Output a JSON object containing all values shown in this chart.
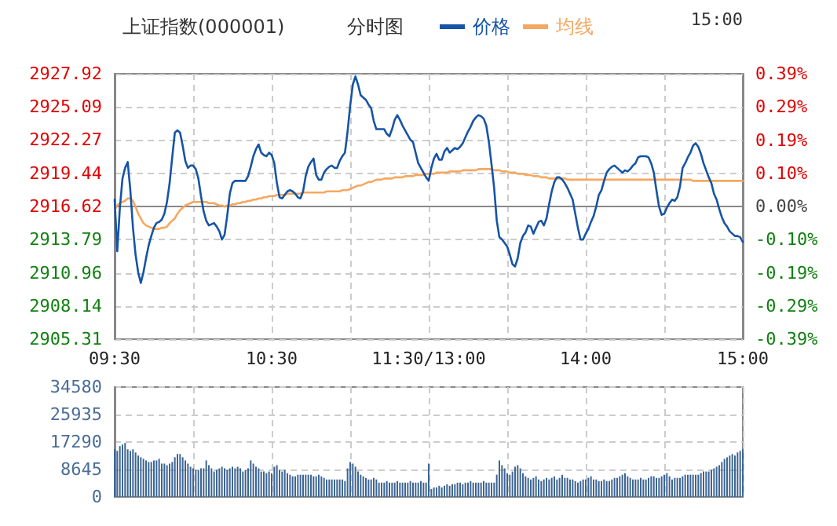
{
  "chart_data": [
    {
      "type": "line",
      "title": "上证指数(000001)",
      "subtitle": "分时图",
      "annotations": [
        "15:00"
      ],
      "legend": "top",
      "grid": true,
      "marker": "none",
      "line_style": "solid",
      "categories": [
        "09:30",
        null,
        null,
        null,
        null,
        null,
        null,
        null,
        null,
        null,
        null,
        null,
        null,
        null,
        null,
        null,
        null,
        null,
        null,
        null,
        null,
        null,
        null,
        null,
        null,
        null,
        null,
        null,
        null,
        null,
        null,
        null,
        null,
        null,
        null,
        null,
        null,
        null,
        null,
        null,
        null,
        null,
        null,
        null,
        null,
        null,
        null,
        null,
        null,
        null,
        null,
        null,
        null,
        null,
        null,
        null,
        null,
        null,
        null,
        null,
        "10:30",
        null,
        null,
        null,
        null,
        null,
        null,
        null,
        null,
        null,
        null,
        null,
        null,
        null,
        null,
        null,
        null,
        null,
        null,
        null,
        null,
        null,
        null,
        null,
        null,
        null,
        null,
        null,
        null,
        null,
        null,
        null,
        null,
        null,
        null,
        null,
        null,
        null,
        null,
        null,
        null,
        null,
        null,
        null,
        null,
        null,
        null,
        null,
        null,
        null,
        null,
        null,
        null,
        null,
        null,
        null,
        null,
        null,
        null,
        null,
        "11:30/13:00",
        null,
        null,
        null,
        null,
        null,
        null,
        null,
        null,
        null,
        null,
        null,
        null,
        null,
        null,
        null,
        null,
        null,
        null,
        null,
        null,
        null,
        null,
        null,
        null,
        null,
        null,
        null,
        null,
        null,
        null,
        null,
        null,
        null,
        null,
        null,
        null,
        null,
        null,
        null,
        null,
        null,
        null,
        null,
        null,
        null,
        null,
        null,
        null,
        null,
        null,
        null,
        null,
        null,
        null,
        null,
        null,
        null,
        null,
        null,
        "14:00",
        null,
        null,
        null,
        null,
        null,
        null,
        null,
        null,
        null,
        null,
        null,
        null,
        null,
        null,
        null,
        null,
        null,
        null,
        null,
        null,
        null,
        null,
        null,
        null,
        null,
        null,
        null,
        null,
        null,
        null,
        null,
        null,
        null,
        null,
        null,
        null,
        null,
        null,
        null,
        null,
        null,
        null,
        null,
        null,
        null,
        null,
        null,
        null,
        null,
        null,
        null,
        null,
        null,
        null,
        null,
        null,
        null,
        null,
        null,
        "15:00"
      ],
      "ylim": [
        2905.31,
        2927.92
      ],
      "yticks": [
        2905.31,
        2908.14,
        2910.96,
        2913.79,
        2916.62,
        2919.44,
        2922.27,
        2925.09,
        2927.92
      ],
      "y2lim": [
        -0.3874,
        0.3874
      ],
      "y2ticks": [
        {
          "value": -0.3874,
          "label": "-0.39%"
        },
        {
          "value": -0.2906,
          "label": "-0.29%"
        },
        {
          "value": -0.1937,
          "label": "-0.19%"
        },
        {
          "value": -0.0969,
          "label": "-0.10%"
        },
        {
          "value": 0,
          "label": "0.00%"
        },
        {
          "value": 0.0969,
          "label": "0.10%"
        },
        {
          "value": 0.1937,
          "label": "0.19%"
        },
        {
          "value": 0.2906,
          "label": "0.29%"
        },
        {
          "value": 0.3874,
          "label": "0.39%"
        }
      ],
      "series": [
        {
          "name": "价格",
          "color": "#1654a6",
          "values": [
            2917.2,
            2912.8,
            2916.5,
            2919.0,
            2919.9,
            2920.4,
            2918.0,
            2914.8,
            2912.5,
            2911.0,
            2910.1,
            2911.0,
            2912.2,
            2913.3,
            2914.1,
            2914.8,
            2915.2,
            2915.3,
            2915.5,
            2916.0,
            2917.0,
            2918.6,
            2920.8,
            2922.9,
            2923.1,
            2922.9,
            2921.8,
            2920.5,
            2919.9,
            2920.1,
            2920.1,
            2919.8,
            2919.0,
            2917.5,
            2916.2,
            2915.4,
            2915.0,
            2915.1,
            2915.2,
            2914.9,
            2914.5,
            2913.8,
            2914.2,
            2915.8,
            2917.7,
            2918.6,
            2918.8,
            2918.8,
            2918.8,
            2918.8,
            2918.8,
            2919.2,
            2920.0,
            2920.9,
            2921.5,
            2921.9,
            2921.2,
            2921.0,
            2920.9,
            2921.2,
            2921.0,
            2920.3,
            2918.6,
            2917.4,
            2917.3,
            2917.6,
            2917.9,
            2918.0,
            2917.9,
            2917.7,
            2917.4,
            2917.3,
            2917.9,
            2919.2,
            2920.0,
            2920.4,
            2920.7,
            2919.3,
            2918.9,
            2918.9,
            2919.5,
            2919.8,
            2920.0,
            2920.1,
            2919.9,
            2919.9,
            2920.5,
            2920.9,
            2921.2,
            2923.0,
            2925.2,
            2927.0,
            2927.7,
            2927.0,
            2926.1,
            2925.9,
            2925.7,
            2925.3,
            2925.0,
            2923.9,
            2923.2,
            2923.2,
            2923.2,
            2923.2,
            2922.8,
            2922.6,
            2923.2,
            2924.0,
            2924.4,
            2924.0,
            2923.5,
            2923.1,
            2922.7,
            2922.3,
            2922.1,
            2921.2,
            2920.3,
            2919.9,
            2919.5,
            2919.1,
            2918.8,
            2919.9,
            2920.7,
            2921.1,
            2920.6,
            2920.6,
            2921.3,
            2921.6,
            2921.2,
            2921.4,
            2921.6,
            2921.5,
            2921.7,
            2922.0,
            2922.5,
            2923.0,
            2923.4,
            2923.9,
            2924.2,
            2924.4,
            2924.3,
            2924.1,
            2923.5,
            2922.1,
            2920.2,
            2918.2,
            2915.4,
            2914.0,
            2913.8,
            2913.5,
            2913.2,
            2912.5,
            2911.7,
            2911.5,
            2912.2,
            2913.5,
            2914.1,
            2914.4,
            2915.0,
            2914.9,
            2914.3,
            2914.8,
            2915.3,
            2915.4,
            2915.0,
            2915.6,
            2916.8,
            2917.9,
            2918.7,
            2919.1,
            2919.1,
            2918.9,
            2918.6,
            2918.2,
            2917.7,
            2917.2,
            2916.0,
            2914.8,
            2913.8,
            2913.8,
            2914.3,
            2914.7,
            2915.3,
            2915.8,
            2916.6,
            2917.6,
            2918.0,
            2918.8,
            2919.5,
            2919.8,
            2920.0,
            2920.1,
            2919.9,
            2919.7,
            2919.5,
            2919.7,
            2919.6,
            2919.8,
            2920.1,
            2920.3,
            2920.8,
            2920.9,
            2920.9,
            2920.9,
            2920.8,
            2920.3,
            2919.5,
            2918.0,
            2916.6,
            2915.9,
            2916.0,
            2916.5,
            2916.9,
            2917.2,
            2917.1,
            2917.4,
            2918.3,
            2919.9,
            2920.3,
            2920.8,
            2921.2,
            2921.8,
            2922.0,
            2921.7,
            2921.1,
            2920.3,
            2919.7,
            2919.1,
            2918.6,
            2917.7,
            2917.2,
            2916.4,
            2915.7,
            2915.2,
            2914.9,
            2914.5,
            2914.3,
            2914.1,
            2914.1,
            2914.0,
            2913.6
          ]
        },
        {
          "name": "均线",
          "color": "#f5a860",
          "values": [
            2916.3,
            2916.7,
            2916.9,
            2917.0,
            2917.1,
            2917.3,
            2917.3,
            2917.1,
            2916.6,
            2916.0,
            2915.6,
            2915.2,
            2915.0,
            2914.9,
            2914.8,
            2914.7,
            2914.7,
            2914.7,
            2914.8,
            2914.8,
            2914.9,
            2915.2,
            2915.4,
            2915.6,
            2916.0,
            2916.3,
            2916.5,
            2916.7,
            2916.8,
            2916.9,
            2917.0,
            2917.0,
            2917.0,
            2917.0,
            2917.0,
            2917.0,
            2916.9,
            2916.9,
            2916.9,
            2916.8,
            2916.7,
            2916.7,
            2916.6,
            2916.7,
            2916.7,
            2916.8,
            2916.8,
            2916.9,
            2916.9,
            2917.0,
            2917.0,
            2917.1,
            2917.1,
            2917.2,
            2917.2,
            2917.3,
            2917.3,
            2917.4,
            2917.4,
            2917.5,
            2917.5,
            2917.5,
            2917.6,
            2917.6,
            2917.6,
            2917.6,
            2917.7,
            2917.7,
            2917.7,
            2917.7,
            2917.7,
            2917.7,
            2917.8,
            2917.8,
            2917.8,
            2917.8,
            2917.8,
            2917.8,
            2917.8,
            2917.8,
            2917.8,
            2917.9,
            2917.9,
            2917.9,
            2917.9,
            2917.9,
            2917.9,
            2918.0,
            2918.0,
            2918.0,
            2918.1,
            2918.2,
            2918.3,
            2918.4,
            2918.4,
            2918.5,
            2918.6,
            2918.7,
            2918.7,
            2918.8,
            2918.9,
            2918.9,
            2918.9,
            2919.0,
            2919.0,
            2919.0,
            2919.0,
            2919.1,
            2919.1,
            2919.1,
            2919.1,
            2919.2,
            2919.2,
            2919.2,
            2919.2,
            2919.3,
            2919.3,
            2919.3,
            2919.3,
            2919.4,
            2919.4,
            2919.4,
            2919.4,
            2919.5,
            2919.5,
            2919.5,
            2919.5,
            2919.5,
            2919.6,
            2919.6,
            2919.6,
            2919.6,
            2919.6,
            2919.7,
            2919.7,
            2919.7,
            2919.7,
            2919.7,
            2919.7,
            2919.8,
            2919.8,
            2919.8,
            2919.8,
            2919.8,
            2919.8,
            2919.7,
            2919.7,
            2919.7,
            2919.6,
            2919.6,
            2919.6,
            2919.5,
            2919.5,
            2919.5,
            2919.4,
            2919.4,
            2919.4,
            2919.3,
            2919.3,
            2919.3,
            2919.2,
            2919.2,
            2919.2,
            2919.1,
            2919.1,
            2919.1,
            2919.0,
            2919.0,
            2919.0,
            2919.0,
            2919.0,
            2919.0,
            2919.0,
            2918.9,
            2918.9,
            2918.9,
            2918.9,
            2918.9,
            2918.9,
            2918.9,
            2918.9,
            2918.9,
            2918.9,
            2918.9,
            2918.9,
            2918.9,
            2918.9,
            2918.9,
            2918.9,
            2918.9,
            2918.9,
            2918.9,
            2918.9,
            2918.9,
            2918.9,
            2918.9,
            2918.9,
            2918.9,
            2918.9,
            2918.9,
            2918.9,
            2918.9,
            2918.9,
            2918.9,
            2918.9,
            2918.9,
            2918.9,
            2918.9,
            2918.9,
            2918.9,
            2918.9,
            2918.9,
            2918.9,
            2918.9,
            2918.9,
            2918.9,
            2918.9,
            2918.9,
            2918.9,
            2918.9,
            2918.9,
            2918.8,
            2918.8,
            2918.8,
            2918.8,
            2918.8,
            2918.8,
            2918.8,
            2918.8,
            2918.8,
            2918.8,
            2918.8,
            2918.8,
            2918.8,
            2918.8,
            2918.8,
            2918.8,
            2918.8,
            2918.8,
            2918.8,
            2918.8
          ]
        }
      ]
    },
    {
      "type": "bar",
      "grid": true,
      "tick_labels": "y",
      "color": "#3d6594",
      "categories": [
        null,
        null,
        null,
        null,
        null,
        null,
        null,
        null,
        null,
        null,
        null,
        null,
        null,
        null,
        null,
        null,
        null,
        null,
        null,
        null,
        null,
        null,
        null,
        null,
        null,
        null,
        null,
        null,
        null,
        null,
        null,
        null,
        null,
        null,
        null,
        null,
        null,
        null,
        null,
        null,
        null,
        null,
        null,
        null,
        null,
        null,
        null,
        null,
        null,
        null,
        null,
        null,
        null,
        null,
        null,
        null,
        null,
        null,
        null,
        null,
        null,
        null,
        null,
        null,
        null,
        null,
        null,
        null,
        null,
        null,
        null,
        null,
        null,
        null,
        null,
        null,
        null,
        null,
        null,
        null,
        null,
        null,
        null,
        null,
        null,
        null,
        null,
        null,
        null,
        null,
        null,
        null,
        null,
        null,
        null,
        null,
        null,
        null,
        null,
        null,
        null,
        null,
        null,
        null,
        null,
        null,
        null,
        null,
        null,
        null,
        null,
        null,
        null,
        null,
        null,
        null,
        null,
        null,
        null,
        null,
        null,
        null,
        null,
        null,
        null,
        null,
        null,
        null,
        null,
        null,
        null,
        null,
        null,
        null,
        null,
        null,
        null,
        null,
        null,
        null,
        null,
        null,
        null,
        null,
        null,
        null,
        null,
        null,
        null,
        null,
        null,
        null,
        null,
        null,
        null,
        null,
        null,
        null,
        null,
        null,
        null,
        null,
        null,
        null,
        null,
        null,
        null,
        null,
        null,
        null,
        null,
        null,
        null,
        null,
        null,
        null,
        null,
        null,
        null,
        null,
        null,
        null,
        null,
        null,
        null,
        null,
        null,
        null,
        null,
        null,
        null,
        null,
        null,
        null,
        null,
        null,
        null,
        null,
        null,
        null,
        null,
        null,
        null,
        null,
        null,
        null,
        null,
        null,
        null,
        null,
        null,
        null,
        null,
        null,
        null,
        null,
        null,
        null,
        null,
        null,
        null,
        null,
        null,
        null,
        null,
        null,
        null,
        null,
        null,
        null,
        null,
        null,
        null,
        null,
        null,
        null,
        null,
        null,
        null,
        null,
        null
      ],
      "ylim": [
        0,
        34580
      ],
      "yticks": [
        0,
        8645,
        17290,
        25935,
        34580
      ],
      "values": [
        15000,
        14500,
        16000,
        16500,
        17000,
        15000,
        14500,
        15000,
        14000,
        13000,
        12500,
        12000,
        11500,
        11000,
        11000,
        11500,
        11500,
        12000,
        10500,
        10500,
        10000,
        10500,
        11000,
        12500,
        13500,
        13500,
        12500,
        11500,
        10500,
        9500,
        9000,
        8500,
        8500,
        9000,
        9000,
        11500,
        10000,
        9000,
        8000,
        8500,
        9000,
        9500,
        9000,
        8500,
        9000,
        9500,
        9000,
        9500,
        9000,
        8000,
        8500,
        9000,
        11500,
        10500,
        9500,
        9000,
        8000,
        8000,
        7500,
        8000,
        7500,
        9500,
        10000,
        8500,
        8000,
        8500,
        7500,
        7000,
        6500,
        6500,
        7000,
        7000,
        7000,
        7000,
        7000,
        7000,
        6500,
        6500,
        7000,
        6500,
        6000,
        5500,
        5500,
        5500,
        5500,
        5500,
        5500,
        5500,
        5000,
        9000,
        11000,
        10500,
        9500,
        8000,
        7000,
        6500,
        6000,
        5500,
        5500,
        6000,
        5500,
        4500,
        4500,
        4500,
        5000,
        4500,
        4500,
        4500,
        5000,
        4500,
        4500,
        4500,
        4500,
        5000,
        4500,
        4500,
        4500,
        5000,
        4500,
        4500,
        10500,
        2500,
        3000,
        3000,
        3500,
        3000,
        3500,
        4000,
        3500,
        4000,
        4000,
        4500,
        4500,
        4000,
        4500,
        4500,
        5000,
        4500,
        4500,
        4500,
        4500,
        5000,
        4500,
        4500,
        4500,
        4500,
        7000,
        11500,
        10000,
        9000,
        7500,
        7000,
        8000,
        9500,
        10000,
        9000,
        7500,
        6500,
        6000,
        5500,
        6000,
        6500,
        5500,
        5000,
        5500,
        6000,
        5500,
        6000,
        6500,
        5500,
        6000,
        7000,
        6000,
        6000,
        5500,
        5500,
        5000,
        4500,
        5000,
        5500,
        5500,
        6000,
        6500,
        5500,
        5500,
        5000,
        5000,
        5500,
        5000,
        5000,
        5500,
        6000,
        6000,
        6500,
        7000,
        7500,
        6500,
        6000,
        5500,
        5500,
        5500,
        6000,
        5500,
        5500,
        6000,
        6500,
        6500,
        6000,
        6000,
        6500,
        7000,
        7500,
        6500,
        5500,
        6000,
        6000,
        6000,
        6500,
        7000,
        7000,
        7000,
        7000,
        7000,
        7000,
        7500,
        8000,
        8000,
        8000,
        8500,
        9000,
        9500,
        10000,
        11000,
        12000,
        12500,
        13000,
        13500,
        13000,
        14000,
        14500,
        15000
      ]
    }
  ]
}
